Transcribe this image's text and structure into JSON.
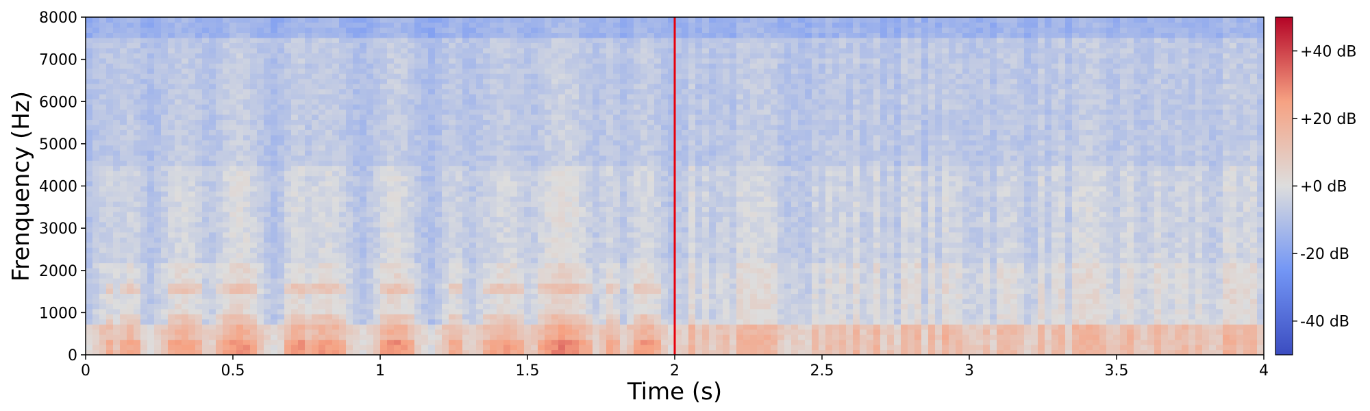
{
  "chart_data": {
    "type": "heatmap",
    "xlabel": "Time (s)",
    "ylabel": "Frenquency (Hz)",
    "xlim": [
      0,
      4
    ],
    "ylim": [
      0,
      8000
    ],
    "x_ticks": [
      0,
      0.5,
      1,
      1.5,
      2,
      2.5,
      3,
      3.5,
      4
    ],
    "x_tick_labels": [
      "0",
      "0.5",
      "1",
      "1.5",
      "2",
      "2.5",
      "3",
      "3.5",
      "4"
    ],
    "y_ticks": [
      0,
      1000,
      2000,
      3000,
      4000,
      5000,
      6000,
      7000,
      8000
    ],
    "y_tick_labels": [
      "0",
      "1000",
      "2000",
      "3000",
      "4000",
      "5000",
      "6000",
      "7000",
      "8000"
    ],
    "colormap": "coolwarm",
    "colorbar": {
      "range": [
        -50,
        50
      ],
      "ticks": [
        40,
        20,
        0,
        -20,
        -40
      ],
      "tick_labels": [
        "+40 dB",
        "+20 dB",
        "+0 dB",
        "-20 dB",
        "-40 dB"
      ]
    },
    "marker_line": {
      "x": 2.0,
      "color": "#e8000b"
    },
    "left_segment_bursts": [
      {
        "t": 0.08,
        "width": 0.07,
        "level": 0.55
      },
      {
        "t": 0.15,
        "width": 0.06,
        "level": 0.62
      },
      {
        "t": 0.33,
        "width": 0.1,
        "level": 0.7
      },
      {
        "t": 0.52,
        "width": 0.1,
        "level": 0.8
      },
      {
        "t": 0.72,
        "width": 0.06,
        "level": 0.75
      },
      {
        "t": 0.82,
        "width": 0.1,
        "level": 0.72
      },
      {
        "t": 1.05,
        "width": 0.09,
        "level": 0.78
      },
      {
        "t": 1.25,
        "width": 0.06,
        "level": 0.6
      },
      {
        "t": 1.42,
        "width": 0.12,
        "level": 0.68
      },
      {
        "t": 1.62,
        "width": 0.12,
        "level": 0.88
      },
      {
        "t": 1.78,
        "width": 0.05,
        "level": 0.62
      },
      {
        "t": 1.9,
        "width": 0.08,
        "level": 0.72
      }
    ]
  }
}
